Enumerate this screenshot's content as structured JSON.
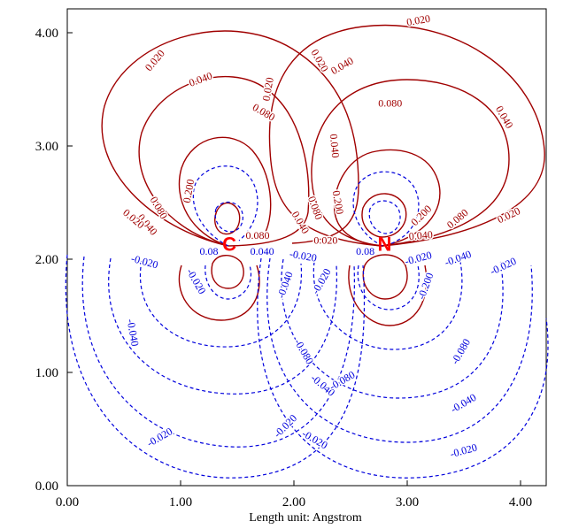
{
  "chart_data": {
    "type": "contour",
    "xlabel": "Length unit: Angstrom",
    "ylabel": "",
    "xlim": [
      0,
      4.22
    ],
    "ylim": [
      0,
      4.22
    ],
    "x_ticks": [
      "0.00",
      "1.00",
      "2.00",
      "3.00",
      "4.00"
    ],
    "y_ticks": [
      "0.00",
      "1.00",
      "2.00",
      "3.00",
      "4.00"
    ],
    "grid": false,
    "colors": {
      "positive": "#a00000",
      "negative": "#0000dd",
      "atom": "#ff0000"
    },
    "atoms": [
      {
        "label": "C",
        "x": 1.43,
        "y": 2.12
      },
      {
        "label": "N",
        "x": 2.8,
        "y": 2.12
      }
    ],
    "contour_labels": [
      {
        "text": "0.020",
        "sign": "positive",
        "x": 3.1,
        "y": 4.1,
        "angle": -10
      },
      {
        "text": "0.020",
        "sign": "positive",
        "x": 0.78,
        "y": 3.75,
        "angle": -50
      },
      {
        "text": "0.040",
        "sign": "positive",
        "x": 1.18,
        "y": 3.58,
        "angle": -20
      },
      {
        "text": "0.020",
        "sign": "positive",
        "x": 2.22,
        "y": 3.75,
        "angle": 60
      },
      {
        "text": "0.040",
        "sign": "positive",
        "x": 2.43,
        "y": 3.7,
        "angle": -30
      },
      {
        "text": "0.020",
        "sign": "positive",
        "x": 1.78,
        "y": 3.5,
        "angle": -80
      },
      {
        "text": "0.080",
        "sign": "positive",
        "x": 1.73,
        "y": 3.29,
        "angle": 30
      },
      {
        "text": "0.080",
        "sign": "positive",
        "x": 2.85,
        "y": 3.37,
        "angle": 0
      },
      {
        "text": "0.040",
        "sign": "positive",
        "x": 3.85,
        "y": 3.25,
        "angle": 60
      },
      {
        "text": "0.040",
        "sign": "positive",
        "x": 2.35,
        "y": 3.0,
        "angle": 85
      },
      {
        "text": "0.200",
        "sign": "positive",
        "x": 1.08,
        "y": 2.6,
        "angle": -80
      },
      {
        "text": "0.080",
        "sign": "positive",
        "x": 0.8,
        "y": 2.45,
        "angle": 60
      },
      {
        "text": "0.040",
        "sign": "positive",
        "x": 0.7,
        "y": 2.3,
        "angle": 50
      },
      {
        "text": "0.020",
        "sign": "positive",
        "x": 0.58,
        "y": 2.35,
        "angle": 40
      },
      {
        "text": "0.200",
        "sign": "positive",
        "x": 2.38,
        "y": 2.5,
        "angle": 80
      },
      {
        "text": "0.080",
        "sign": "positive",
        "x": 2.18,
        "y": 2.45,
        "angle": 70
      },
      {
        "text": "0.040",
        "sign": "positive",
        "x": 2.05,
        "y": 2.32,
        "angle": 60
      },
      {
        "text": "0.080",
        "sign": "positive",
        "x": 1.68,
        "y": 2.2,
        "angle": 0
      },
      {
        "text": "0.020",
        "sign": "positive",
        "x": 2.28,
        "y": 2.16,
        "angle": 0
      },
      {
        "text": "0.200",
        "sign": "positive",
        "x": 3.13,
        "y": 2.38,
        "angle": -45
      },
      {
        "text": "0.080",
        "sign": "positive",
        "x": 3.45,
        "y": 2.35,
        "angle": -40
      },
      {
        "text": "0.020",
        "sign": "positive",
        "x": 3.9,
        "y": 2.38,
        "angle": -25
      },
      {
        "text": "0.040",
        "sign": "positive",
        "x": 3.12,
        "y": 2.2,
        "angle": -5
      },
      {
        "text": "0.08",
        "sign": "negative",
        "x": 1.25,
        "y": 2.06,
        "angle": 0
      },
      {
        "text": "0.040",
        "sign": "negative",
        "x": 1.72,
        "y": 2.06,
        "angle": 0
      },
      {
        "text": "-0.020",
        "sign": "negative",
        "x": 0.68,
        "y": 1.97,
        "angle": 15
      },
      {
        "text": "-0.020",
        "sign": "negative",
        "x": 2.08,
        "y": 2.02,
        "angle": 10
      },
      {
        "text": "-0.020",
        "sign": "negative",
        "x": 1.13,
        "y": 1.8,
        "angle": 60
      },
      {
        "text": "-0.040",
        "sign": "negative",
        "x": 1.93,
        "y": 1.77,
        "angle": -70
      },
      {
        "text": "-0.020",
        "sign": "negative",
        "x": 2.25,
        "y": 1.8,
        "angle": -60
      },
      {
        "text": "0.08",
        "sign": "negative",
        "x": 2.63,
        "y": 2.06,
        "angle": 0
      },
      {
        "text": "-0.020",
        "sign": "negative",
        "x": 3.1,
        "y": 2.0,
        "angle": -15
      },
      {
        "text": "-0.040",
        "sign": "negative",
        "x": 3.45,
        "y": 2.0,
        "angle": -20
      },
      {
        "text": "-0.020",
        "sign": "negative",
        "x": 3.85,
        "y": 1.93,
        "angle": -25
      },
      {
        "text": "-0.200",
        "sign": "negative",
        "x": 3.17,
        "y": 1.76,
        "angle": -70
      },
      {
        "text": "-0.040",
        "sign": "negative",
        "x": 0.57,
        "y": 1.35,
        "angle": 80
      },
      {
        "text": "-0.080",
        "sign": "negative",
        "x": 2.08,
        "y": 1.18,
        "angle": 60
      },
      {
        "text": "-0.080",
        "sign": "negative",
        "x": 3.48,
        "y": 1.18,
        "angle": -60
      },
      {
        "text": "-0.040",
        "sign": "negative",
        "x": 2.25,
        "y": 0.88,
        "angle": 40
      },
      {
        "text": "-0.080",
        "sign": "negative",
        "x": 2.43,
        "y": 0.92,
        "angle": -30
      },
      {
        "text": "-0.040",
        "sign": "negative",
        "x": 3.5,
        "y": 0.72,
        "angle": -30
      },
      {
        "text": "-0.020",
        "sign": "negative",
        "x": 1.93,
        "y": 0.52,
        "angle": -45
      },
      {
        "text": "-0.020",
        "sign": "negative",
        "x": 2.18,
        "y": 0.4,
        "angle": 30
      },
      {
        "text": "-0.020",
        "sign": "negative",
        "x": 0.82,
        "y": 0.42,
        "angle": -30
      },
      {
        "text": "-0.020",
        "sign": "negative",
        "x": 3.5,
        "y": 0.3,
        "angle": -15
      }
    ]
  }
}
